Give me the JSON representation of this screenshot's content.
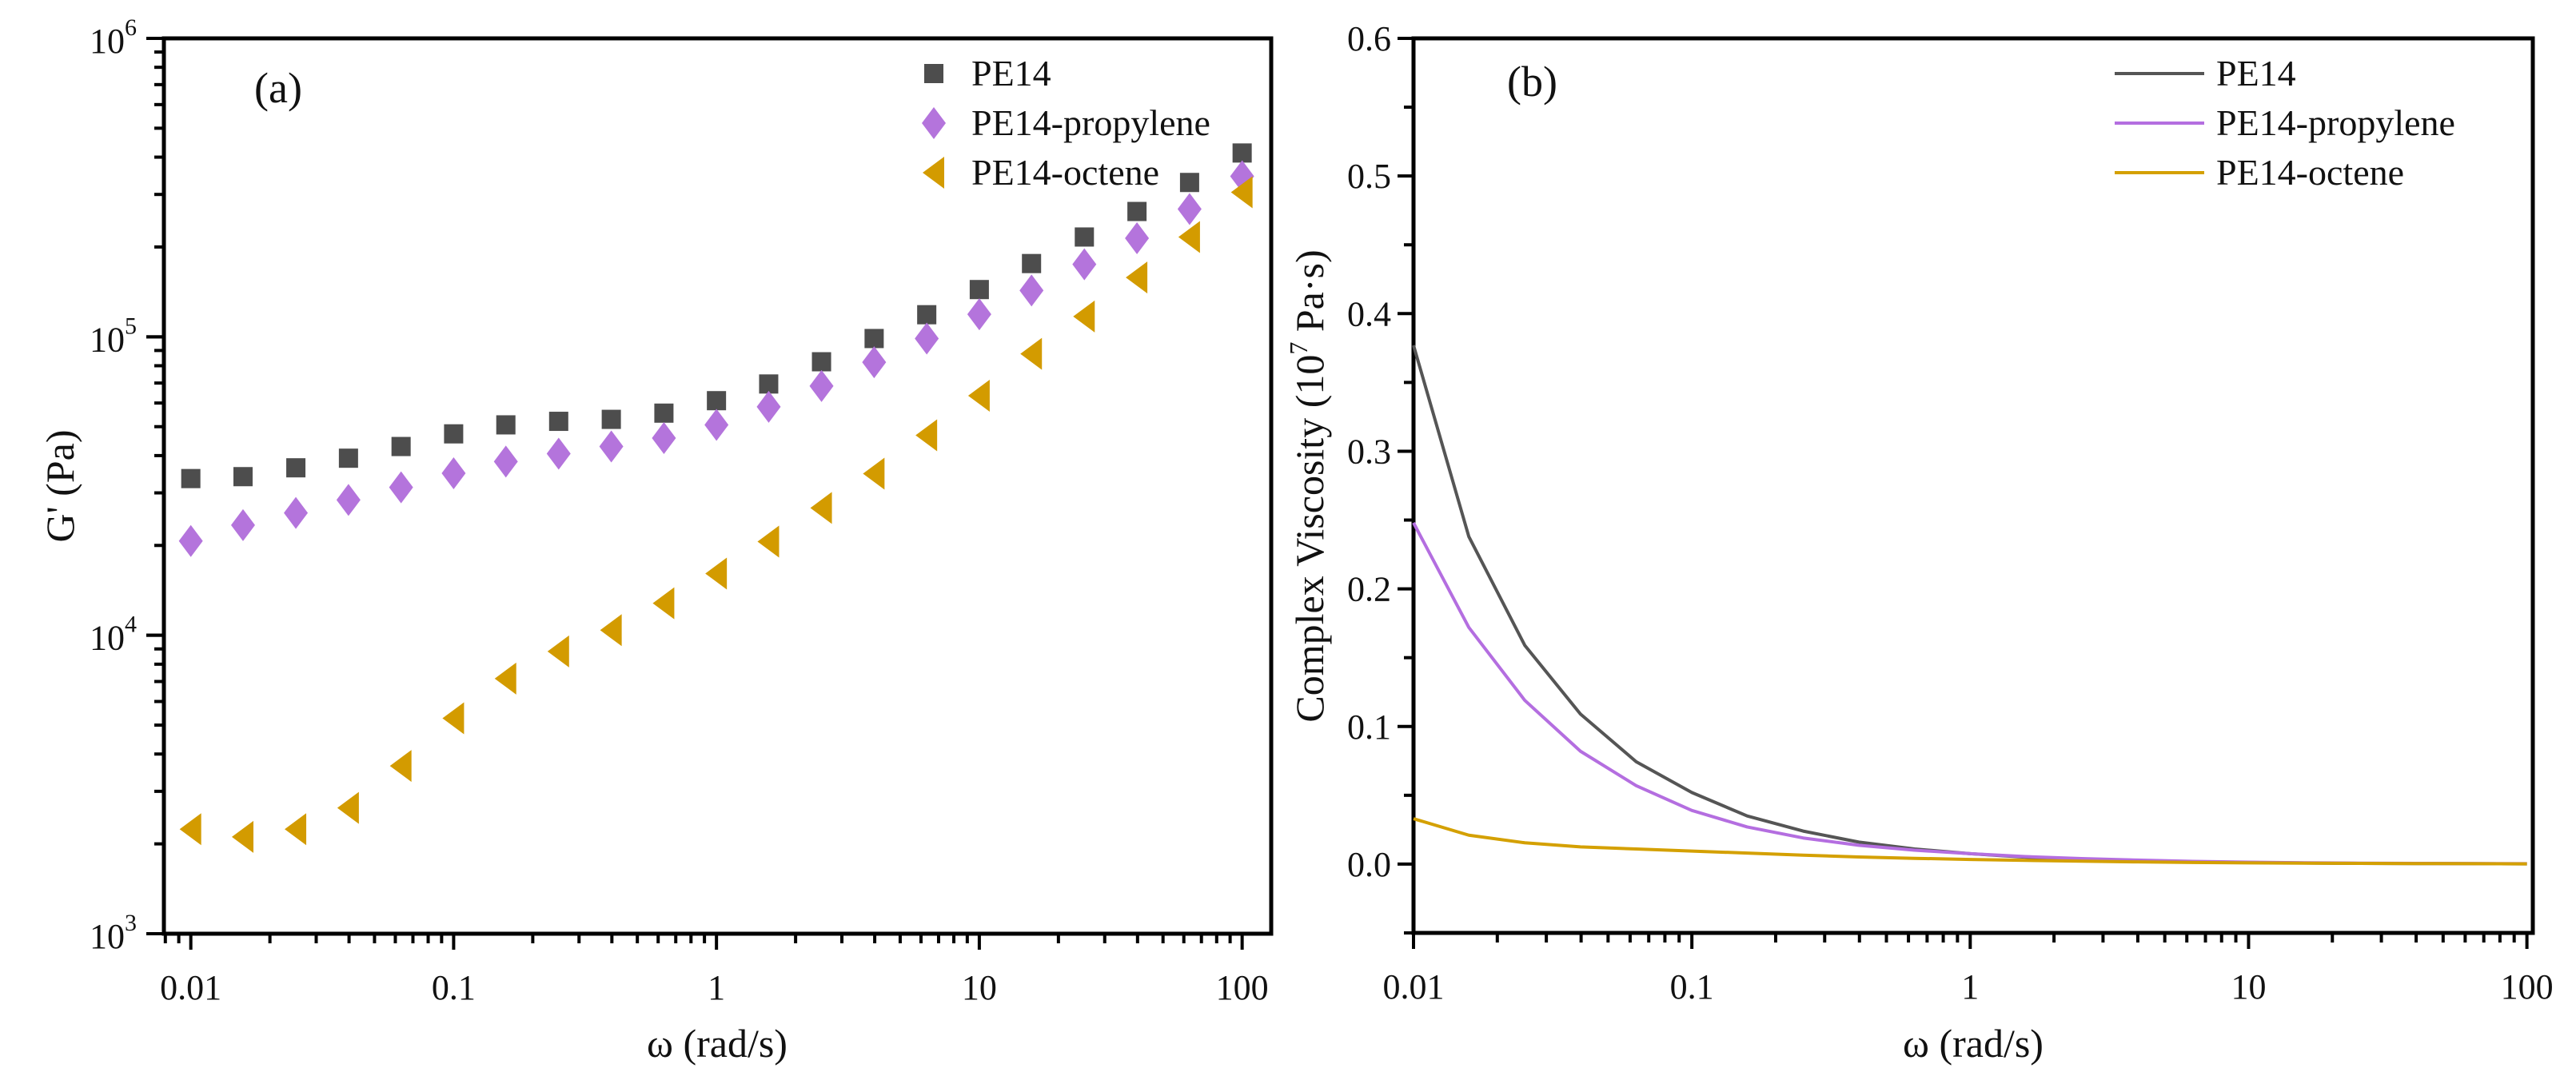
{
  "chart_data": [
    {
      "type": "scatter",
      "panel_label": "(a)",
      "xlabel": "ω (rad/s)",
      "ylabel": "G' (Pa)",
      "xscale": "log",
      "yscale": "log",
      "xlim": [
        0.0079,
        129
      ],
      "ylim": [
        1000,
        1000000
      ],
      "x_ticks": [
        0.01,
        0.1,
        1,
        10,
        100
      ],
      "x_tick_labels": [
        "0.01",
        "0.1",
        "1",
        "10",
        "100"
      ],
      "y_ticks": [
        1000,
        10000,
        100000,
        1000000
      ],
      "y_tick_labels": [
        {
          "base": "10",
          "exp": "3"
        },
        {
          "base": "10",
          "exp": "4"
        },
        {
          "base": "10",
          "exp": "5"
        },
        {
          "base": "10",
          "exp": "6"
        }
      ],
      "legend_position": "top-right",
      "x": [
        0.01,
        0.0158,
        0.0251,
        0.0398,
        0.0631,
        0.1,
        0.158,
        0.251,
        0.398,
        0.631,
        1,
        1.58,
        2.51,
        3.98,
        6.31,
        10,
        15.8,
        25.1,
        39.8,
        63.1,
        100
      ],
      "series": [
        {
          "name": "PE14",
          "marker": "square",
          "color": "#4d4d4d",
          "values": [
            33500,
            34000,
            36400,
            39200,
            42900,
            47300,
            50700,
            52100,
            52900,
            55500,
            61100,
            69500,
            82500,
            98700,
            118600,
            144000,
            176000,
            216000,
            263000,
            329000,
            413000
          ]
        },
        {
          "name": "PE14-propylene",
          "marker": "diamond",
          "color": "#b474dc",
          "values": [
            20700,
            23400,
            25700,
            28400,
            31300,
            34900,
            38200,
            40600,
            42900,
            45800,
            50700,
            58300,
            68400,
            82200,
            98700,
            119000,
            143000,
            175000,
            214000,
            268000,
            345000
          ]
        },
        {
          "name": "PE14-octene",
          "marker": "triangle-left",
          "color": "#d39b00",
          "values": [
            2240,
            2110,
            2240,
            2640,
            3650,
            5270,
            7160,
            8830,
            10400,
            12800,
            16100,
            20600,
            26700,
            34800,
            46800,
            63500,
            87700,
            117000,
            158000,
            216000,
            305000
          ]
        }
      ]
    },
    {
      "type": "line",
      "panel_label": "(b)",
      "xlabel": "ω (rad/s)",
      "ylabel_parts": {
        "prefix": "Complex Viscosity (10",
        "sup": "7",
        "suffix": " Pa·s)"
      },
      "xscale": "log",
      "yscale": "linear",
      "xlim": [
        0.01,
        105
      ],
      "ylim": [
        -0.05,
        0.6
      ],
      "x_ticks": [
        0.01,
        0.1,
        1,
        10,
        100
      ],
      "x_tick_labels": [
        "0.01",
        "0.1",
        "1",
        "10",
        "100"
      ],
      "y_ticks": [
        0.0,
        0.1,
        0.2,
        0.3,
        0.4,
        0.5,
        0.6
      ],
      "y_tick_labels": [
        "0.0",
        "0.1",
        "0.2",
        "0.3",
        "0.4",
        "0.5",
        "0.6"
      ],
      "legend_position": "top-right",
      "x": [
        0.01,
        0.0158,
        0.0251,
        0.0398,
        0.0631,
        0.1,
        0.158,
        0.251,
        0.398,
        0.631,
        1,
        1.58,
        2.51,
        3.98,
        6.31,
        10,
        15.8,
        25.1,
        39.8,
        63.1,
        100
      ],
      "series": [
        {
          "name": "PE14",
          "color": "#555555",
          "values": [
            0.377,
            0.238,
            0.159,
            0.109,
            0.0744,
            0.052,
            0.035,
            0.024,
            0.016,
            0.011,
            0.0076,
            0.005,
            0.0035,
            0.0025,
            0.0017,
            0.0012,
            0.0008,
            0.0005,
            0.0004,
            0.0003,
            0.0002
          ]
        },
        {
          "name": "PE14-propylene",
          "color": "#b46ee0",
          "values": [
            0.248,
            0.172,
            0.119,
            0.082,
            0.057,
            0.039,
            0.027,
            0.019,
            0.0137,
            0.0101,
            0.0076,
            0.0055,
            0.004,
            0.0029,
            0.002,
            0.0014,
            0.001,
            0.0007,
            0.0005,
            0.0004,
            0.0003
          ]
        },
        {
          "name": "PE14-octene",
          "color": "#d4a000",
          "values": [
            0.033,
            0.021,
            0.0155,
            0.0125,
            0.011,
            0.0095,
            0.008,
            0.0065,
            0.0052,
            0.0042,
            0.0034,
            0.0027,
            0.0021,
            0.0016,
            0.0012,
            0.0009,
            0.0007,
            0.0005,
            0.0004,
            0.0003,
            0.0002
          ]
        }
      ]
    }
  ]
}
